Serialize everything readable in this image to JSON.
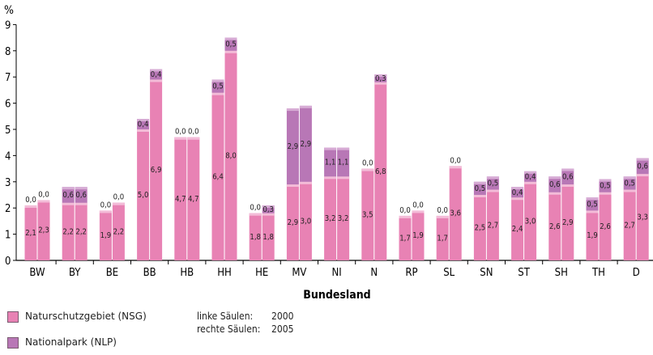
{
  "chart_data": {
    "type": "bar",
    "subtype": "stacked-grouped",
    "ylabel": "%",
    "xlabel": "Bundesland",
    "ylim": [
      0,
      9
    ],
    "yticks": [
      "0",
      "1",
      "2",
      "3",
      "4",
      "5",
      "6",
      "7",
      "8",
      "9"
    ],
    "categories": [
      "BW",
      "BY",
      "BE",
      "BB",
      "HB",
      "HH",
      "HE",
      "MV",
      "NI",
      "N",
      "RP",
      "SL",
      "SN",
      "ST",
      "SH",
      "TH",
      "D"
    ],
    "groups": [
      {
        "name": "2000",
        "series": [
          {
            "name": "Naturschutzgebiet (NSG)",
            "values": [
              2.1,
              2.2,
              1.9,
              5.0,
              4.7,
              6.4,
              1.8,
              2.9,
              3.2,
              3.5,
              1.7,
              1.7,
              2.5,
              2.4,
              2.6,
              1.9,
              2.7
            ],
            "labels": [
              "2,1",
              "2,2",
              "1,9",
              "5,0",
              "4,7",
              "6,4",
              "1,8",
              "2,9",
              "3,2",
              "3,5",
              "1,7",
              "1,7",
              "2,5",
              "2,4",
              "2,6",
              "1,9",
              "2,7"
            ]
          },
          {
            "name": "Nationalpark (NLP)",
            "values": [
              0.0,
              0.6,
              0.0,
              0.4,
              0.0,
              0.5,
              0.0,
              2.9,
              1.1,
              0.0,
              0.0,
              0.0,
              0.5,
              0.4,
              0.6,
              0.5,
              0.5
            ],
            "labels": [
              "0,0",
              "0,6",
              "0,0",
              "0,4",
              "0,0",
              "0,5",
              "0,0",
              "2,9",
              "1,1",
              "0,0",
              "0,0",
              "0,0",
              "0,5",
              "0,4",
              "0,6",
              "0,5",
              "0,5"
            ]
          }
        ]
      },
      {
        "name": "2005",
        "series": [
          {
            "name": "Naturschutzgebiet (NSG)",
            "values": [
              2.3,
              2.2,
              2.2,
              6.9,
              4.7,
              8.0,
              1.8,
              3.0,
              3.2,
              6.8,
              1.9,
              3.6,
              2.7,
              3.0,
              2.9,
              2.6,
              3.3
            ],
            "labels": [
              "2,3",
              "2,2",
              "2,2",
              "6,9",
              "4,7",
              "8,0",
              "1,8",
              "3,0",
              "3,2",
              "6,8",
              "1,9",
              "3,6",
              "2,7",
              "3,0",
              "2,9",
              "2,6",
              "3,3"
            ]
          },
          {
            "name": "Nationalpark (NLP)",
            "values": [
              0.0,
              0.6,
              0.0,
              0.4,
              0.0,
              0.5,
              0.3,
              2.9,
              1.1,
              0.3,
              0.0,
              0.0,
              0.5,
              0.4,
              0.6,
              0.5,
              0.6
            ],
            "labels": [
              "0,0",
              "0,6",
              "0,0",
              "0,4",
              "0,0",
              "0,5",
              "0,3",
              "2,9",
              "1,1",
              "0,3",
              "0,0",
              "0,0",
              "0,5",
              "0,4",
              "0,6",
              "0,5",
              "0,6"
            ]
          }
        ]
      }
    ],
    "colors": {
      "nsg": "#e882b4",
      "nsg_top": "#f3bcd8",
      "nlp": "#b877b6",
      "nlp_top": "#d7acd5",
      "axis": "#000000"
    },
    "legend": [
      {
        "label": "Naturschutzgebiet (NSG)",
        "color": "#e882b4"
      },
      {
        "label": "Nationalpark (NLP)",
        "color": "#b877b6"
      }
    ],
    "notes": [
      {
        "label": "linke Säulen:",
        "value": "2000"
      },
      {
        "label": "rechte Säulen:",
        "value": "2005"
      }
    ]
  }
}
